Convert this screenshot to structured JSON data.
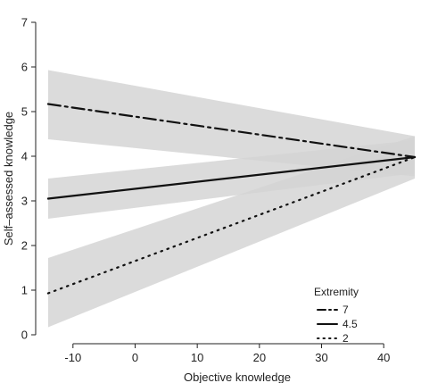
{
  "chart_data": {
    "type": "line",
    "title": "",
    "xlabel": "Objective knowledge",
    "ylabel": "Self–assessed knowledge",
    "xlim": [
      -16,
      46
    ],
    "ylim": [
      -0.2,
      7.2
    ],
    "xticks": [
      "-10",
      "0",
      "10",
      "20",
      "30",
      "40"
    ],
    "yticks": [
      "0",
      "1",
      "2",
      "3",
      "4",
      "5",
      "6",
      "7"
    ],
    "grid": false,
    "legend": {
      "title": "Extremity",
      "position": "bottom-right"
    },
    "ribbon_color": "#d3d3d3",
    "line_color": "#111111",
    "series": [
      {
        "name": "7",
        "style": "dashdot",
        "x": [
          -14,
          45
        ],
        "y": [
          5.17,
          3.98
        ],
        "lower": [
          4.38,
          3.55
        ],
        "upper": [
          5.93,
          4.45
        ]
      },
      {
        "name": "4.5",
        "style": "solid",
        "x": [
          -14,
          45
        ],
        "y": [
          3.05,
          3.98
        ],
        "lower": [
          2.6,
          3.62
        ],
        "upper": [
          3.5,
          4.36
        ]
      },
      {
        "name": "2",
        "style": "dotted",
        "x": [
          -14,
          45
        ],
        "y": [
          0.93,
          3.98
        ],
        "lower": [
          0.17,
          3.5
        ],
        "upper": [
          1.72,
          4.45
        ]
      }
    ]
  }
}
